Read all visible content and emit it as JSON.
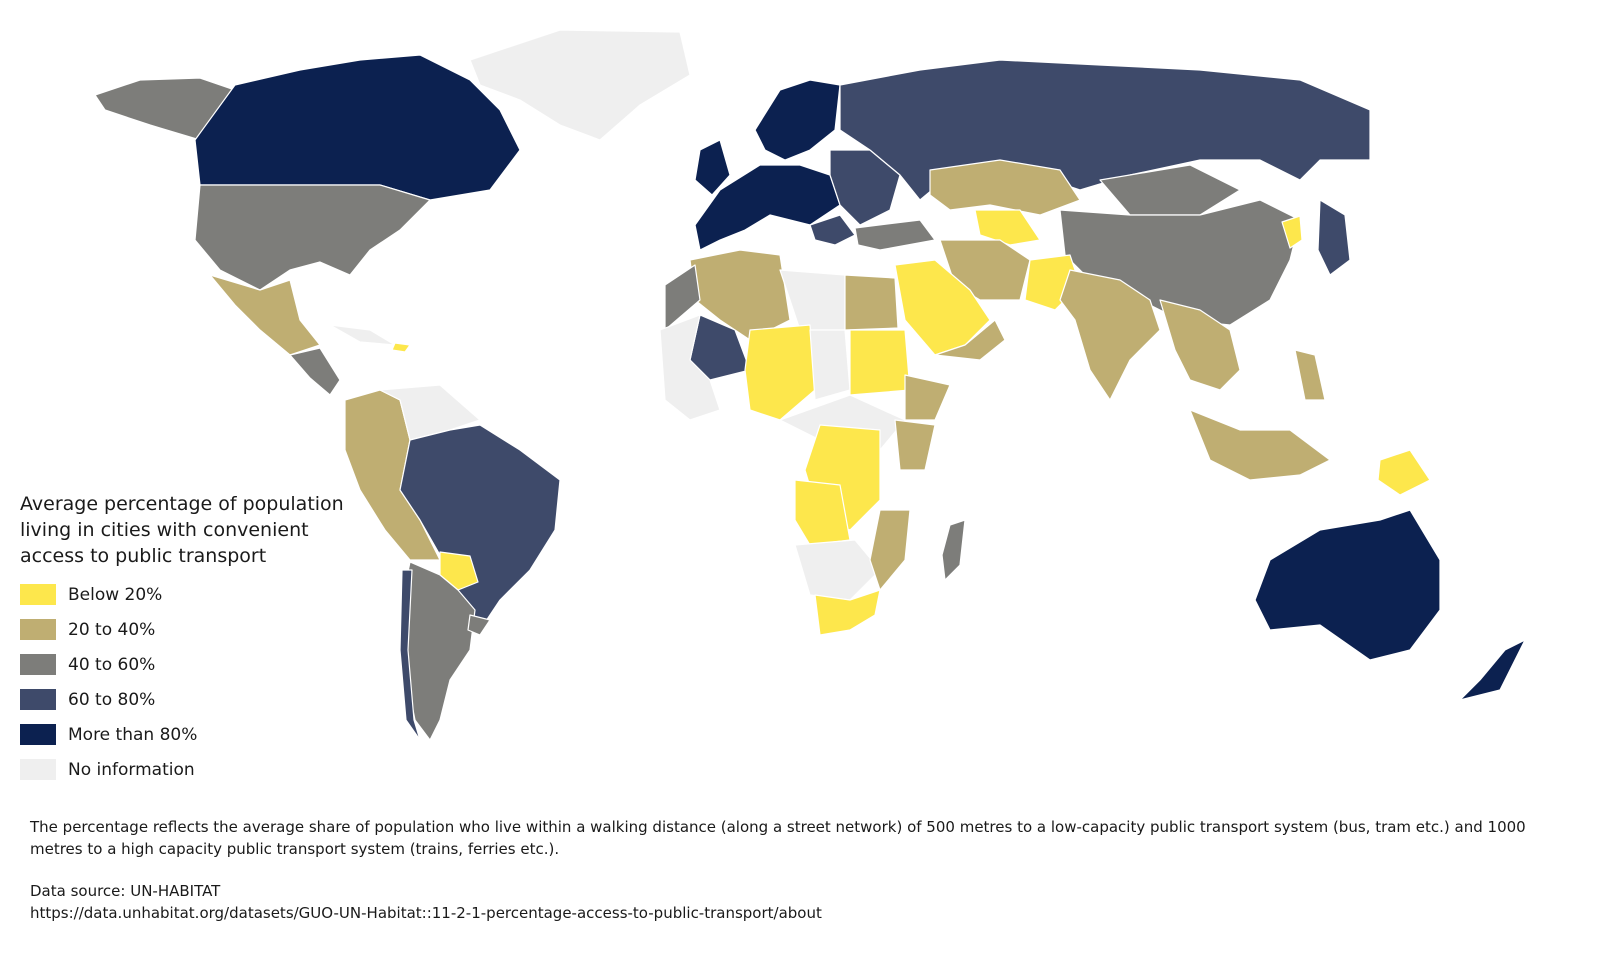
{
  "legend": {
    "title": "Average percentage of population living in cities with convenient access to public transport",
    "items": [
      {
        "label": "Below 20%",
        "color": "#fde74c"
      },
      {
        "label": "20 to 40%",
        "color": "#bfae72"
      },
      {
        "label": "40 to 60%",
        "color": "#7d7d7a"
      },
      {
        "label": "60 to 80%",
        "color": "#3e4a6a"
      },
      {
        "label": "More than 80%",
        "color": "#0c2150"
      },
      {
        "label": "No information",
        "color": "#efefef"
      }
    ]
  },
  "footer": {
    "note": "The percentage reflects the average share of population who live within a walking distance (along a street network) of 500 metres to a low-capacity public transport system (bus, tram etc.) and 1000 metres to a high capacity public transport system (trains, ferries etc.).",
    "source_label": "Data source: UN-HABITAT",
    "source_url": "https://data.unhabitat.org/datasets/GUO-UN-Habitat::11-2-1-percentage-access-to-public-transport/about"
  }
}
